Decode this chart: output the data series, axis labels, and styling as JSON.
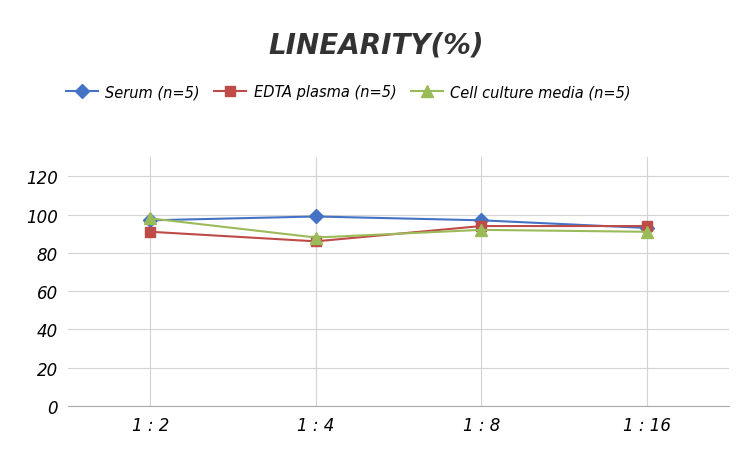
{
  "title": "LINEARITY(%)",
  "x_labels": [
    "1 : 2",
    "1 : 4",
    "1 : 8",
    "1 : 16"
  ],
  "x_values": [
    0,
    1,
    2,
    3
  ],
  "series": [
    {
      "label": "Serum (n=5)",
      "values": [
        97,
        99,
        97,
        93
      ],
      "color": "#4472C4",
      "marker": "D",
      "markersize": 7,
      "linewidth": 1.5
    },
    {
      "label": "EDTA plasma (n=5)",
      "values": [
        91,
        86,
        94,
        94
      ],
      "color": "#BE4B48",
      "marker": "s",
      "markersize": 7,
      "linewidth": 1.5
    },
    {
      "label": "Cell culture media (n=5)",
      "values": [
        98,
        88,
        92,
        91
      ],
      "color": "#9BBB59",
      "marker": "^",
      "markersize": 8,
      "linewidth": 1.5
    }
  ],
  "ylim": [
    0,
    130
  ],
  "yticks": [
    0,
    20,
    40,
    60,
    80,
    100,
    120
  ],
  "background_color": "#ffffff",
  "grid_color": "#d3d3d3",
  "title_fontsize": 20,
  "legend_fontsize": 10.5,
  "tick_fontsize": 12
}
